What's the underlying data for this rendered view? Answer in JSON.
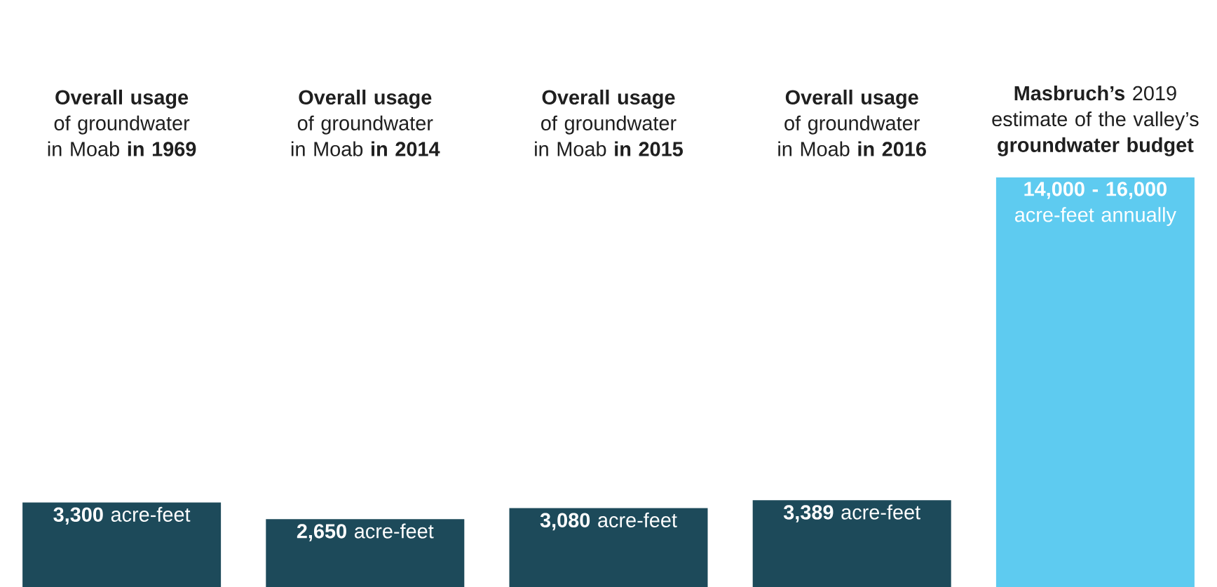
{
  "chart_data": {
    "type": "bar",
    "categories": [
      "**Overall usage** of groundwater in Moab **in 1969**",
      "**Overall usage** of groundwater in Moab **in 2014**",
      "**Overall usage** of groundwater in Moab **in 2015**",
      "**Overall usage** of groundwater in Moab **in 2016**",
      "**Masbruch’s** 2019 estimate of the valley’s **groundwater budget**"
    ],
    "values": [
      3300,
      2650,
      3080,
      3389,
      16000
    ],
    "colors": [
      "#1d4a5a",
      "#1d4a5a",
      "#1d4a5a",
      "#1d4a5a",
      "#5ecbf0"
    ],
    "value_labels": [
      "**3,300** acre-feet",
      "**2,650** acre-feet",
      "**3,080** acre-feet",
      "**3,389** acre-feet",
      "**14,000 - 16,000** acre-feet annually"
    ]
  }
}
